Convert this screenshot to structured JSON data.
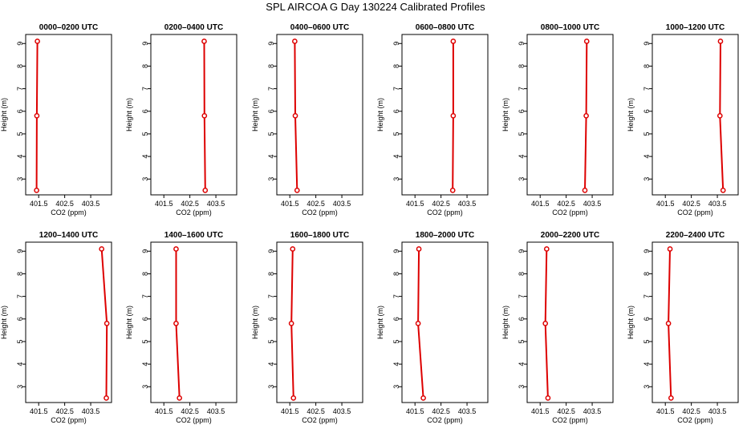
{
  "title": "SPL AIRCOA G  Day 130224  Calibrated Profiles",
  "colors": {
    "profile": "#dd0000",
    "axis": "#000000",
    "frame": "#000000"
  },
  "chart_data": [
    {
      "type": "line",
      "title": "0000–0200 UTC",
      "xlabel": "CO2 (ppm)",
      "ylabel": "Height (m)",
      "xlim": [
        401.0,
        404.3
      ],
      "ylim": [
        2.3,
        9.4
      ],
      "xticks": [
        "401.5",
        "402.5",
        "403.5"
      ],
      "xtick_values": [
        401.5,
        402.5,
        403.5
      ],
      "yticks": [
        "3",
        "4",
        "5",
        "6",
        "7",
        "8",
        "9"
      ],
      "ytick_values": [
        3,
        4,
        5,
        6,
        7,
        8,
        9
      ],
      "x": [
        401.42,
        401.43,
        401.45
      ],
      "y": [
        2.5,
        5.8,
        9.1
      ]
    },
    {
      "type": "line",
      "title": "0200–0400 UTC",
      "xlabel": "CO2 (ppm)",
      "ylabel": "Height (m)",
      "xlim": [
        401.0,
        404.3
      ],
      "ylim": [
        2.3,
        9.4
      ],
      "xticks": [
        "401.5",
        "402.5",
        "403.5"
      ],
      "xtick_values": [
        401.5,
        402.5,
        403.5
      ],
      "yticks": [
        "3",
        "4",
        "5",
        "6",
        "7",
        "8",
        "9"
      ],
      "ytick_values": [
        3,
        4,
        5,
        6,
        7,
        8,
        9
      ],
      "x": [
        403.09,
        403.06,
        403.05
      ],
      "y": [
        2.5,
        5.8,
        9.1
      ]
    },
    {
      "type": "line",
      "title": "0400–0600 UTC",
      "xlabel": "CO2 (ppm)",
      "ylabel": "Height (m)",
      "xlim": [
        401.0,
        404.3
      ],
      "ylim": [
        2.3,
        9.4
      ],
      "xticks": [
        "401.5",
        "402.5",
        "403.5"
      ],
      "xtick_values": [
        401.5,
        402.5,
        403.5
      ],
      "yticks": [
        "3",
        "4",
        "5",
        "6",
        "7",
        "8",
        "9"
      ],
      "ytick_values": [
        3,
        4,
        5,
        6,
        7,
        8,
        9
      ],
      "x": [
        401.78,
        401.71,
        401.69
      ],
      "y": [
        2.5,
        5.8,
        9.1
      ]
    },
    {
      "type": "line",
      "title": "0600–0800 UTC",
      "xlabel": "CO2 (ppm)",
      "ylabel": "Height (m)",
      "xlim": [
        401.0,
        404.3
      ],
      "ylim": [
        2.3,
        9.4
      ],
      "xticks": [
        "401.5",
        "402.5",
        "403.5"
      ],
      "xtick_values": [
        401.5,
        402.5,
        403.5
      ],
      "yticks": [
        "3",
        "4",
        "5",
        "6",
        "7",
        "8",
        "9"
      ],
      "ytick_values": [
        3,
        4,
        5,
        6,
        7,
        8,
        9
      ],
      "x": [
        402.95,
        402.97,
        402.97
      ],
      "y": [
        2.5,
        5.8,
        9.1
      ]
    },
    {
      "type": "line",
      "title": "0800–1000 UTC",
      "xlabel": "CO2 (ppm)",
      "ylabel": "Height (m)",
      "xlim": [
        401.0,
        404.3
      ],
      "ylim": [
        2.3,
        9.4
      ],
      "xticks": [
        "401.5",
        "402.5",
        "403.5"
      ],
      "xtick_values": [
        401.5,
        402.5,
        403.5
      ],
      "yticks": [
        "3",
        "4",
        "5",
        "6",
        "7",
        "8",
        "9"
      ],
      "ytick_values": [
        3,
        4,
        5,
        6,
        7,
        8,
        9
      ],
      "x": [
        403.22,
        403.27,
        403.29
      ],
      "y": [
        2.5,
        5.8,
        9.1
      ]
    },
    {
      "type": "line",
      "title": "1000–1200 UTC",
      "xlabel": "CO2 (ppm)",
      "ylabel": "Height (m)",
      "xlim": [
        401.0,
        404.3
      ],
      "ylim": [
        2.3,
        9.4
      ],
      "xticks": [
        "401.5",
        "402.5",
        "403.5"
      ],
      "xtick_values": [
        401.5,
        402.5,
        403.5
      ],
      "yticks": [
        "3",
        "4",
        "5",
        "6",
        "7",
        "8",
        "9"
      ],
      "ytick_values": [
        3,
        4,
        5,
        6,
        7,
        8,
        9
      ],
      "x": [
        403.72,
        403.6,
        403.62
      ],
      "y": [
        2.5,
        5.8,
        9.1
      ]
    },
    {
      "type": "line",
      "title": "1200–1400 UTC",
      "xlabel": "CO2 (ppm)",
      "ylabel": "Height (m)",
      "xlim": [
        401.0,
        404.3
      ],
      "ylim": [
        2.3,
        9.4
      ],
      "xticks": [
        "401.5",
        "402.5",
        "403.5"
      ],
      "xtick_values": [
        401.5,
        402.5,
        403.5
      ],
      "yticks": [
        "3",
        "4",
        "5",
        "6",
        "7",
        "8",
        "9"
      ],
      "ytick_values": [
        3,
        4,
        5,
        6,
        7,
        8,
        9
      ],
      "x": [
        404.1,
        404.12,
        403.92
      ],
      "y": [
        2.5,
        5.8,
        9.1
      ]
    },
    {
      "type": "line",
      "title": "1400–1600 UTC",
      "xlabel": "CO2 (ppm)",
      "ylabel": "Height (m)",
      "xlim": [
        401.0,
        404.3
      ],
      "ylim": [
        2.3,
        9.4
      ],
      "xticks": [
        "401.5",
        "402.5",
        "403.5"
      ],
      "xtick_values": [
        401.5,
        402.5,
        403.5
      ],
      "yticks": [
        "3",
        "4",
        "5",
        "6",
        "7",
        "8",
        "9"
      ],
      "ytick_values": [
        3,
        4,
        5,
        6,
        7,
        8,
        9
      ],
      "x": [
        402.1,
        401.97,
        401.97
      ],
      "y": [
        2.5,
        5.8,
        9.1
      ]
    },
    {
      "type": "line",
      "title": "1600–1800 UTC",
      "xlabel": "CO2 (ppm)",
      "ylabel": "Height (m)",
      "xlim": [
        401.0,
        404.3
      ],
      "ylim": [
        2.3,
        9.4
      ],
      "xticks": [
        "401.5",
        "402.5",
        "403.5"
      ],
      "xtick_values": [
        401.5,
        402.5,
        403.5
      ],
      "yticks": [
        "3",
        "4",
        "5",
        "6",
        "7",
        "8",
        "9"
      ],
      "ytick_values": [
        3,
        4,
        5,
        6,
        7,
        8,
        9
      ],
      "x": [
        401.64,
        401.56,
        401.61
      ],
      "y": [
        2.5,
        5.8,
        9.1
      ]
    },
    {
      "type": "line",
      "title": "1800–2000 UTC",
      "xlabel": "CO2 (ppm)",
      "ylabel": "Height (m)",
      "xlim": [
        401.0,
        404.3
      ],
      "ylim": [
        2.3,
        9.4
      ],
      "xticks": [
        "401.5",
        "402.5",
        "403.5"
      ],
      "xtick_values": [
        401.5,
        402.5,
        403.5
      ],
      "yticks": [
        "3",
        "4",
        "5",
        "6",
        "7",
        "8",
        "9"
      ],
      "ytick_values": [
        3,
        4,
        5,
        6,
        7,
        8,
        9
      ],
      "x": [
        401.82,
        401.62,
        401.65
      ],
      "y": [
        2.5,
        5.8,
        9.1
      ]
    },
    {
      "type": "line",
      "title": "2000–2200 UTC",
      "xlabel": "CO2 (ppm)",
      "ylabel": "Height (m)",
      "xlim": [
        401.0,
        404.3
      ],
      "ylim": [
        2.3,
        9.4
      ],
      "xticks": [
        "401.5",
        "402.5",
        "403.5"
      ],
      "xtick_values": [
        401.5,
        402.5,
        403.5
      ],
      "yticks": [
        "3",
        "4",
        "5",
        "6",
        "7",
        "8",
        "9"
      ],
      "ytick_values": [
        3,
        4,
        5,
        6,
        7,
        8,
        9
      ],
      "x": [
        401.8,
        401.7,
        401.75
      ],
      "y": [
        2.5,
        5.8,
        9.1
      ]
    },
    {
      "type": "line",
      "title": "2200–2400 UTC",
      "xlabel": "CO2 (ppm)",
      "ylabel": "Height (m)",
      "xlim": [
        401.0,
        404.3
      ],
      "ylim": [
        2.3,
        9.4
      ],
      "xticks": [
        "401.5",
        "402.5",
        "403.5"
      ],
      "xtick_values": [
        401.5,
        402.5,
        403.5
      ],
      "yticks": [
        "3",
        "4",
        "5",
        "6",
        "7",
        "8",
        "9"
      ],
      "ytick_values": [
        3,
        4,
        5,
        6,
        7,
        8,
        9
      ],
      "x": [
        401.72,
        401.62,
        401.68
      ],
      "y": [
        2.5,
        5.8,
        9.1
      ]
    }
  ]
}
